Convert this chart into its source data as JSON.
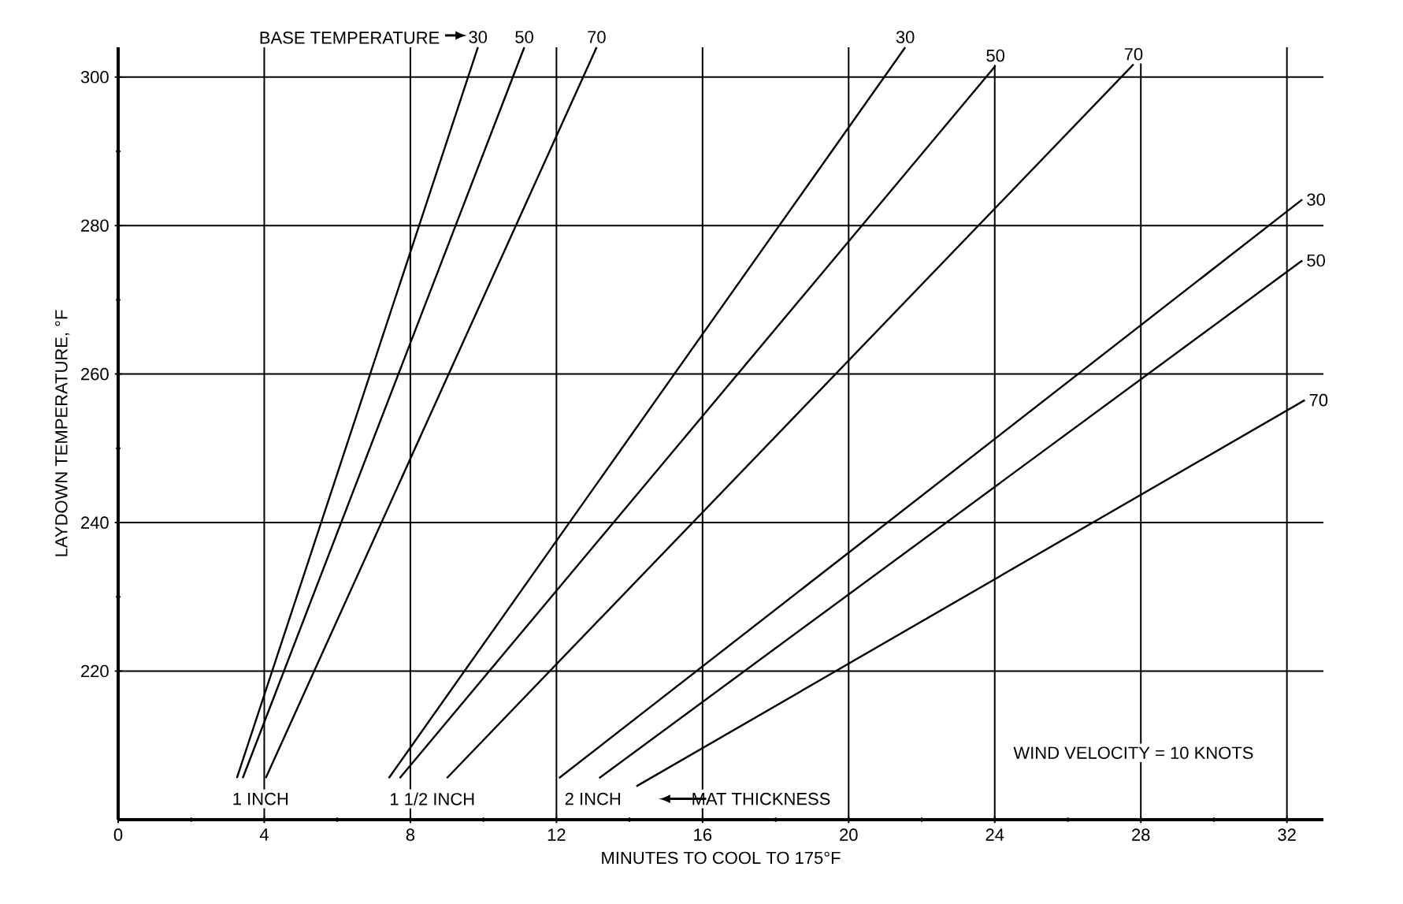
{
  "chart_data": {
    "type": "line",
    "xlabel": "MINUTES TO COOL TO 175°F",
    "ylabel": "LAYDOWN TEMPERATURE, °F",
    "annotations": [
      "BASE TEMPERATURE",
      "1 INCH",
      "1 1/2 INCH",
      "2 INCH",
      "MAT THICKNESS",
      "WIND VELOCITY = 10 KNOTS"
    ],
    "xlim": [
      0,
      33
    ],
    "ylim": [
      200,
      304
    ],
    "xticks": [
      0,
      4,
      8,
      12,
      16,
      20,
      24,
      28,
      32
    ],
    "yticks": [
      220,
      240,
      260,
      280,
      300
    ],
    "grid": true,
    "marker": "none",
    "line_style": "solid",
    "series": [
      {
        "name": "30",
        "color": "#000000",
        "x": [
          3.25,
          9.85
        ],
        "values": [
          205.6,
          304
        ]
      },
      {
        "name": "50",
        "color": "#000000",
        "x": [
          3.41,
          11.12
        ],
        "values": [
          205.6,
          304
        ]
      },
      {
        "name": "70",
        "color": "#000000",
        "x": [
          4.04,
          13.1
        ],
        "values": [
          205.6,
          304
        ]
      },
      {
        "name": "30",
        "color": "#000000",
        "x": [
          7.41,
          21.55
        ],
        "values": [
          205.6,
          304
        ]
      },
      {
        "name": "50",
        "color": "#000000",
        "x": [
          7.71,
          24.02
        ],
        "values": [
          205.6,
          301.5
        ]
      },
      {
        "name": "70",
        "color": "#000000",
        "x": [
          9.0,
          27.8
        ],
        "values": [
          205.6,
          301.7
        ]
      },
      {
        "name": "30",
        "color": "#000000",
        "x": [
          12.07,
          32.42
        ],
        "values": [
          205.6,
          283.5
        ]
      },
      {
        "name": "50",
        "color": "#000000",
        "x": [
          13.17,
          32.42
        ],
        "values": [
          205.6,
          275.3
        ]
      },
      {
        "name": "70",
        "color": "#000000",
        "x": [
          14.19,
          32.49
        ],
        "values": [
          204.5,
          256.5
        ]
      }
    ]
  }
}
